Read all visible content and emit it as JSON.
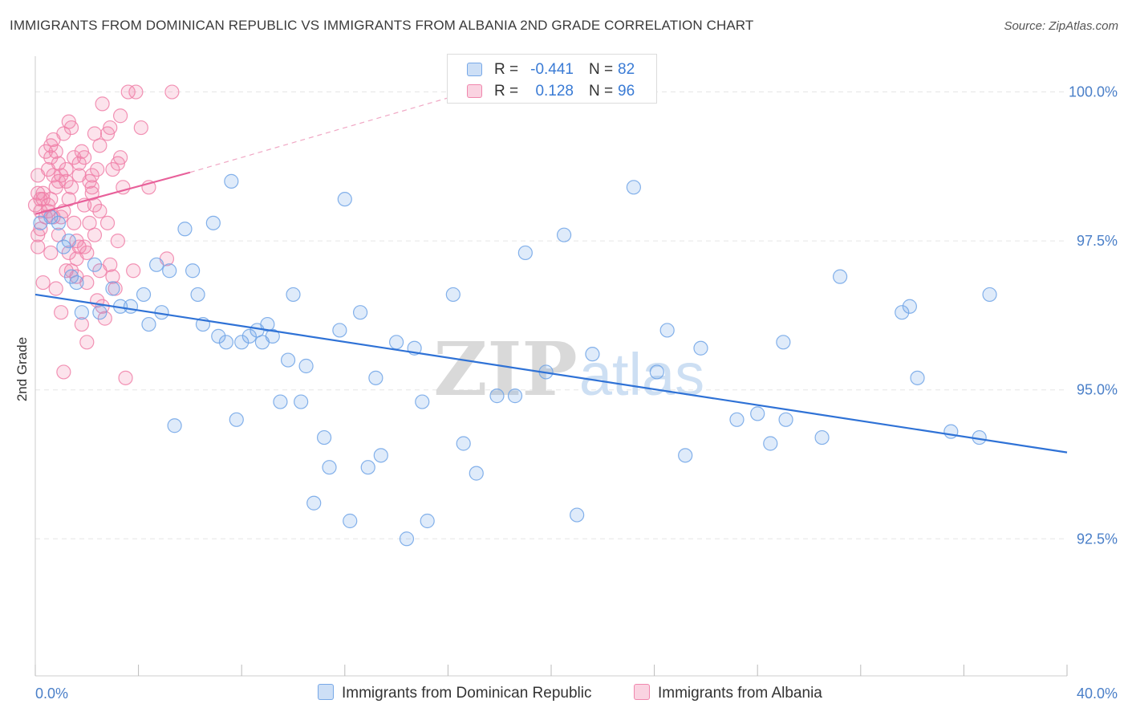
{
  "title": "IMMIGRANTS FROM DOMINICAN REPUBLIC VS IMMIGRANTS FROM ALBANIA 2ND GRADE CORRELATION CHART",
  "source": "Source: ZipAtlas.com",
  "watermark": {
    "zip": "ZIP",
    "atlas": "atlas"
  },
  "legend_top": {
    "r_label": "R =",
    "n_label": "N =",
    "rows": [
      {
        "r": "-0.441",
        "n": "82",
        "color": "#6fa3e6"
      },
      {
        "r": "0.128",
        "n": "96",
        "color": "#f080a8"
      }
    ]
  },
  "chart_data": {
    "type": "scatter",
    "xlabel": "",
    "ylabel": "2nd Grade",
    "x_ticks": [
      "0.0%",
      "40.0%"
    ],
    "y_ticks": [
      "92.5%",
      "95.0%",
      "97.5%",
      "100.0%"
    ],
    "xlim": [
      0,
      40
    ],
    "ylim": [
      90.2,
      100.6
    ],
    "grid": true,
    "legend_position": "bottom",
    "series": [
      {
        "name": "Immigrants from Dominican Republic",
        "color": "#6fa3e6",
        "trend": {
          "x": [
            0,
            40
          ],
          "y": [
            96.6,
            93.95
          ]
        },
        "points": [
          [
            0.2,
            97.8
          ],
          [
            0.6,
            97.9
          ],
          [
            0.9,
            97.8
          ],
          [
            1.1,
            97.4
          ],
          [
            1.3,
            97.5
          ],
          [
            1.4,
            96.9
          ],
          [
            1.6,
            96.8
          ],
          [
            1.8,
            96.3
          ],
          [
            2.3,
            97.1
          ],
          [
            3.0,
            96.7
          ],
          [
            3.3,
            96.4
          ],
          [
            3.7,
            96.4
          ],
          [
            4.2,
            96.6
          ],
          [
            4.4,
            96.1
          ],
          [
            4.7,
            97.1
          ],
          [
            4.9,
            96.3
          ],
          [
            5.2,
            97.0
          ],
          [
            5.4,
            94.4
          ],
          [
            5.8,
            97.7
          ],
          [
            6.1,
            97.0
          ],
          [
            6.3,
            96.6
          ],
          [
            6.5,
            96.1
          ],
          [
            6.9,
            97.8
          ],
          [
            7.1,
            95.9
          ],
          [
            7.4,
            95.8
          ],
          [
            7.6,
            98.5
          ],
          [
            7.8,
            94.5
          ],
          [
            8.0,
            95.8
          ],
          [
            8.3,
            95.9
          ],
          [
            8.6,
            96.0
          ],
          [
            8.8,
            95.8
          ],
          [
            9.0,
            96.1
          ],
          [
            9.2,
            95.9
          ],
          [
            9.5,
            94.8
          ],
          [
            9.8,
            95.5
          ],
          [
            10.0,
            96.6
          ],
          [
            10.3,
            94.8
          ],
          [
            10.5,
            95.4
          ],
          [
            10.8,
            93.1
          ],
          [
            11.2,
            94.2
          ],
          [
            11.4,
            93.7
          ],
          [
            11.8,
            96.0
          ],
          [
            12.0,
            98.2
          ],
          [
            12.2,
            92.8
          ],
          [
            12.6,
            96.3
          ],
          [
            12.9,
            93.7
          ],
          [
            13.2,
            95.2
          ],
          [
            13.4,
            93.9
          ],
          [
            14.0,
            95.8
          ],
          [
            14.4,
            92.5
          ],
          [
            14.7,
            95.7
          ],
          [
            15.0,
            94.8
          ],
          [
            15.2,
            92.8
          ],
          [
            16.2,
            96.6
          ],
          [
            16.6,
            94.1
          ],
          [
            17.1,
            93.6
          ],
          [
            17.9,
            94.9
          ],
          [
            18.6,
            94.9
          ],
          [
            19.0,
            97.3
          ],
          [
            19.8,
            95.3
          ],
          [
            20.5,
            97.6
          ],
          [
            21.0,
            92.9
          ],
          [
            21.6,
            95.6
          ],
          [
            24.1,
            95.3
          ],
          [
            24.5,
            96.0
          ],
          [
            25.2,
            93.9
          ],
          [
            25.8,
            95.7
          ],
          [
            27.2,
            94.5
          ],
          [
            28.0,
            94.6
          ],
          [
            28.5,
            94.1
          ],
          [
            29.0,
            95.8
          ],
          [
            29.1,
            94.5
          ],
          [
            23.2,
            98.4
          ],
          [
            30.5,
            94.2
          ],
          [
            33.6,
            96.3
          ],
          [
            33.9,
            96.4
          ],
          [
            34.2,
            95.2
          ],
          [
            35.5,
            94.3
          ],
          [
            36.6,
            94.2
          ],
          [
            37.0,
            96.6
          ],
          [
            31.2,
            96.9
          ],
          [
            2.5,
            96.3
          ]
        ]
      },
      {
        "name": "Immigrants from Albania",
        "color": "#f080a8",
        "trend": {
          "x": [
            0,
            6
          ],
          "y": [
            97.95,
            98.65
          ]
        },
        "trend_extended": {
          "x": [
            6,
            16
          ],
          "y": [
            98.65,
            99.9
          ]
        },
        "points": [
          [
            0.0,
            98.1
          ],
          [
            0.1,
            98.3
          ],
          [
            0.1,
            97.6
          ],
          [
            0.1,
            97.4
          ],
          [
            0.2,
            98.0
          ],
          [
            0.2,
            98.2
          ],
          [
            0.3,
            98.2
          ],
          [
            0.3,
            96.8
          ],
          [
            0.4,
            99.0
          ],
          [
            0.5,
            98.7
          ],
          [
            0.5,
            98.1
          ],
          [
            0.6,
            98.9
          ],
          [
            0.6,
            98.2
          ],
          [
            0.6,
            97.3
          ],
          [
            0.7,
            99.2
          ],
          [
            0.7,
            97.9
          ],
          [
            0.8,
            98.4
          ],
          [
            0.8,
            96.7
          ],
          [
            0.9,
            98.5
          ],
          [
            0.9,
            98.8
          ],
          [
            1.0,
            98.6
          ],
          [
            1.0,
            97.9
          ],
          [
            1.0,
            96.3
          ],
          [
            1.1,
            99.3
          ],
          [
            1.1,
            95.3
          ],
          [
            1.2,
            98.7
          ],
          [
            1.2,
            97.0
          ],
          [
            1.3,
            97.3
          ],
          [
            1.3,
            98.2
          ],
          [
            1.4,
            98.4
          ],
          [
            1.4,
            99.4
          ],
          [
            1.5,
            97.8
          ],
          [
            1.5,
            98.9
          ],
          [
            1.6,
            97.5
          ],
          [
            1.6,
            97.2
          ],
          [
            1.7,
            98.6
          ],
          [
            1.7,
            97.4
          ],
          [
            1.8,
            96.1
          ],
          [
            1.8,
            99.0
          ],
          [
            1.9,
            98.1
          ],
          [
            1.9,
            98.9
          ],
          [
            2.0,
            97.3
          ],
          [
            2.0,
            95.8
          ],
          [
            2.1,
            98.5
          ],
          [
            2.1,
            97.8
          ],
          [
            2.2,
            98.6
          ],
          [
            2.2,
            98.3
          ],
          [
            2.3,
            99.3
          ],
          [
            2.3,
            98.1
          ],
          [
            2.4,
            98.7
          ],
          [
            2.4,
            96.5
          ],
          [
            2.5,
            99.1
          ],
          [
            2.5,
            97.0
          ],
          [
            2.6,
            99.8
          ],
          [
            2.7,
            96.2
          ],
          [
            2.8,
            99.3
          ],
          [
            2.9,
            97.1
          ],
          [
            2.9,
            99.4
          ],
          [
            3.0,
            98.7
          ],
          [
            3.1,
            96.7
          ],
          [
            3.2,
            98.8
          ],
          [
            3.2,
            97.5
          ],
          [
            3.3,
            98.9
          ],
          [
            3.3,
            99.6
          ],
          [
            3.4,
            98.4
          ],
          [
            3.5,
            95.2
          ],
          [
            3.6,
            100.0
          ],
          [
            3.8,
            97.0
          ],
          [
            3.9,
            100.0
          ],
          [
            4.1,
            99.4
          ],
          [
            4.4,
            98.4
          ],
          [
            5.1,
            97.2
          ],
          [
            5.3,
            100.0
          ],
          [
            0.4,
            97.9
          ],
          [
            0.5,
            98.0
          ],
          [
            0.7,
            98.6
          ],
          [
            0.8,
            99.0
          ],
          [
            0.9,
            97.6
          ],
          [
            1.1,
            98.0
          ],
          [
            1.2,
            98.5
          ],
          [
            1.4,
            97.0
          ],
          [
            1.6,
            96.9
          ],
          [
            1.7,
            98.8
          ],
          [
            1.9,
            97.4
          ],
          [
            2.0,
            96.8
          ],
          [
            2.2,
            98.4
          ],
          [
            2.3,
            97.6
          ],
          [
            2.5,
            98.0
          ],
          [
            2.6,
            96.4
          ],
          [
            2.8,
            97.8
          ],
          [
            3.0,
            96.9
          ],
          [
            0.3,
            98.3
          ],
          [
            0.2,
            97.7
          ],
          [
            0.6,
            99.1
          ],
          [
            1.3,
            99.5
          ],
          [
            0.1,
            98.6
          ]
        ]
      }
    ]
  }
}
